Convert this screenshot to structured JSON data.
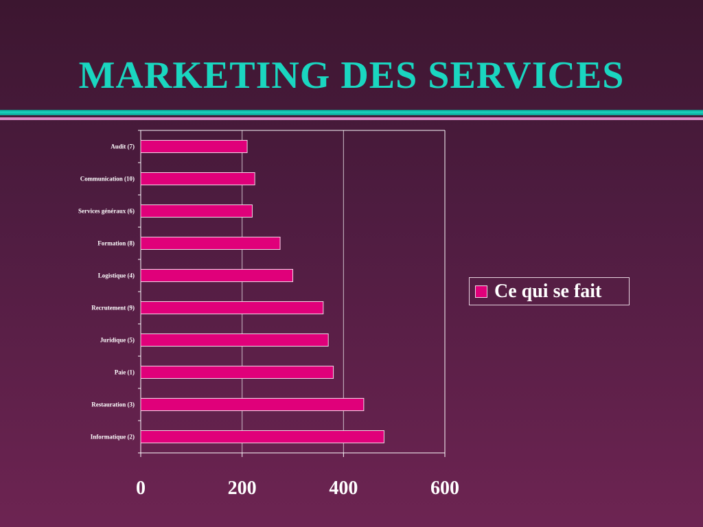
{
  "slide": {
    "title": "MARKETING DES SERVICES"
  },
  "colors": {
    "title": "#1ad6c0",
    "bar_fill": "#e0007a",
    "bar_stroke": "#f3d6e7",
    "gridline": "#cfc2cb"
  },
  "chart_data": {
    "type": "bar",
    "orientation": "horizontal",
    "categories": [
      "Audit (7)",
      "Communication (10)",
      "Services généraux (6)",
      "Formation (8)",
      "Logistique (4)",
      "Recrutement (9)",
      "Juridique (5)",
      "Paie (1)",
      "Restauration (3)",
      "Informatique (2)"
    ],
    "series": [
      {
        "name": "Ce qui se fait",
        "values": [
          210,
          225,
          220,
          275,
          300,
          360,
          370,
          380,
          440,
          480
        ]
      }
    ],
    "xlim": [
      0,
      600
    ],
    "xticks": [
      {
        "value": 0,
        "label": "0"
      },
      {
        "value": 200,
        "label": "200"
      },
      {
        "value": 400,
        "label": "400"
      },
      {
        "value": 600,
        "label": "600"
      }
    ],
    "grid": true,
    "legend": "right"
  }
}
